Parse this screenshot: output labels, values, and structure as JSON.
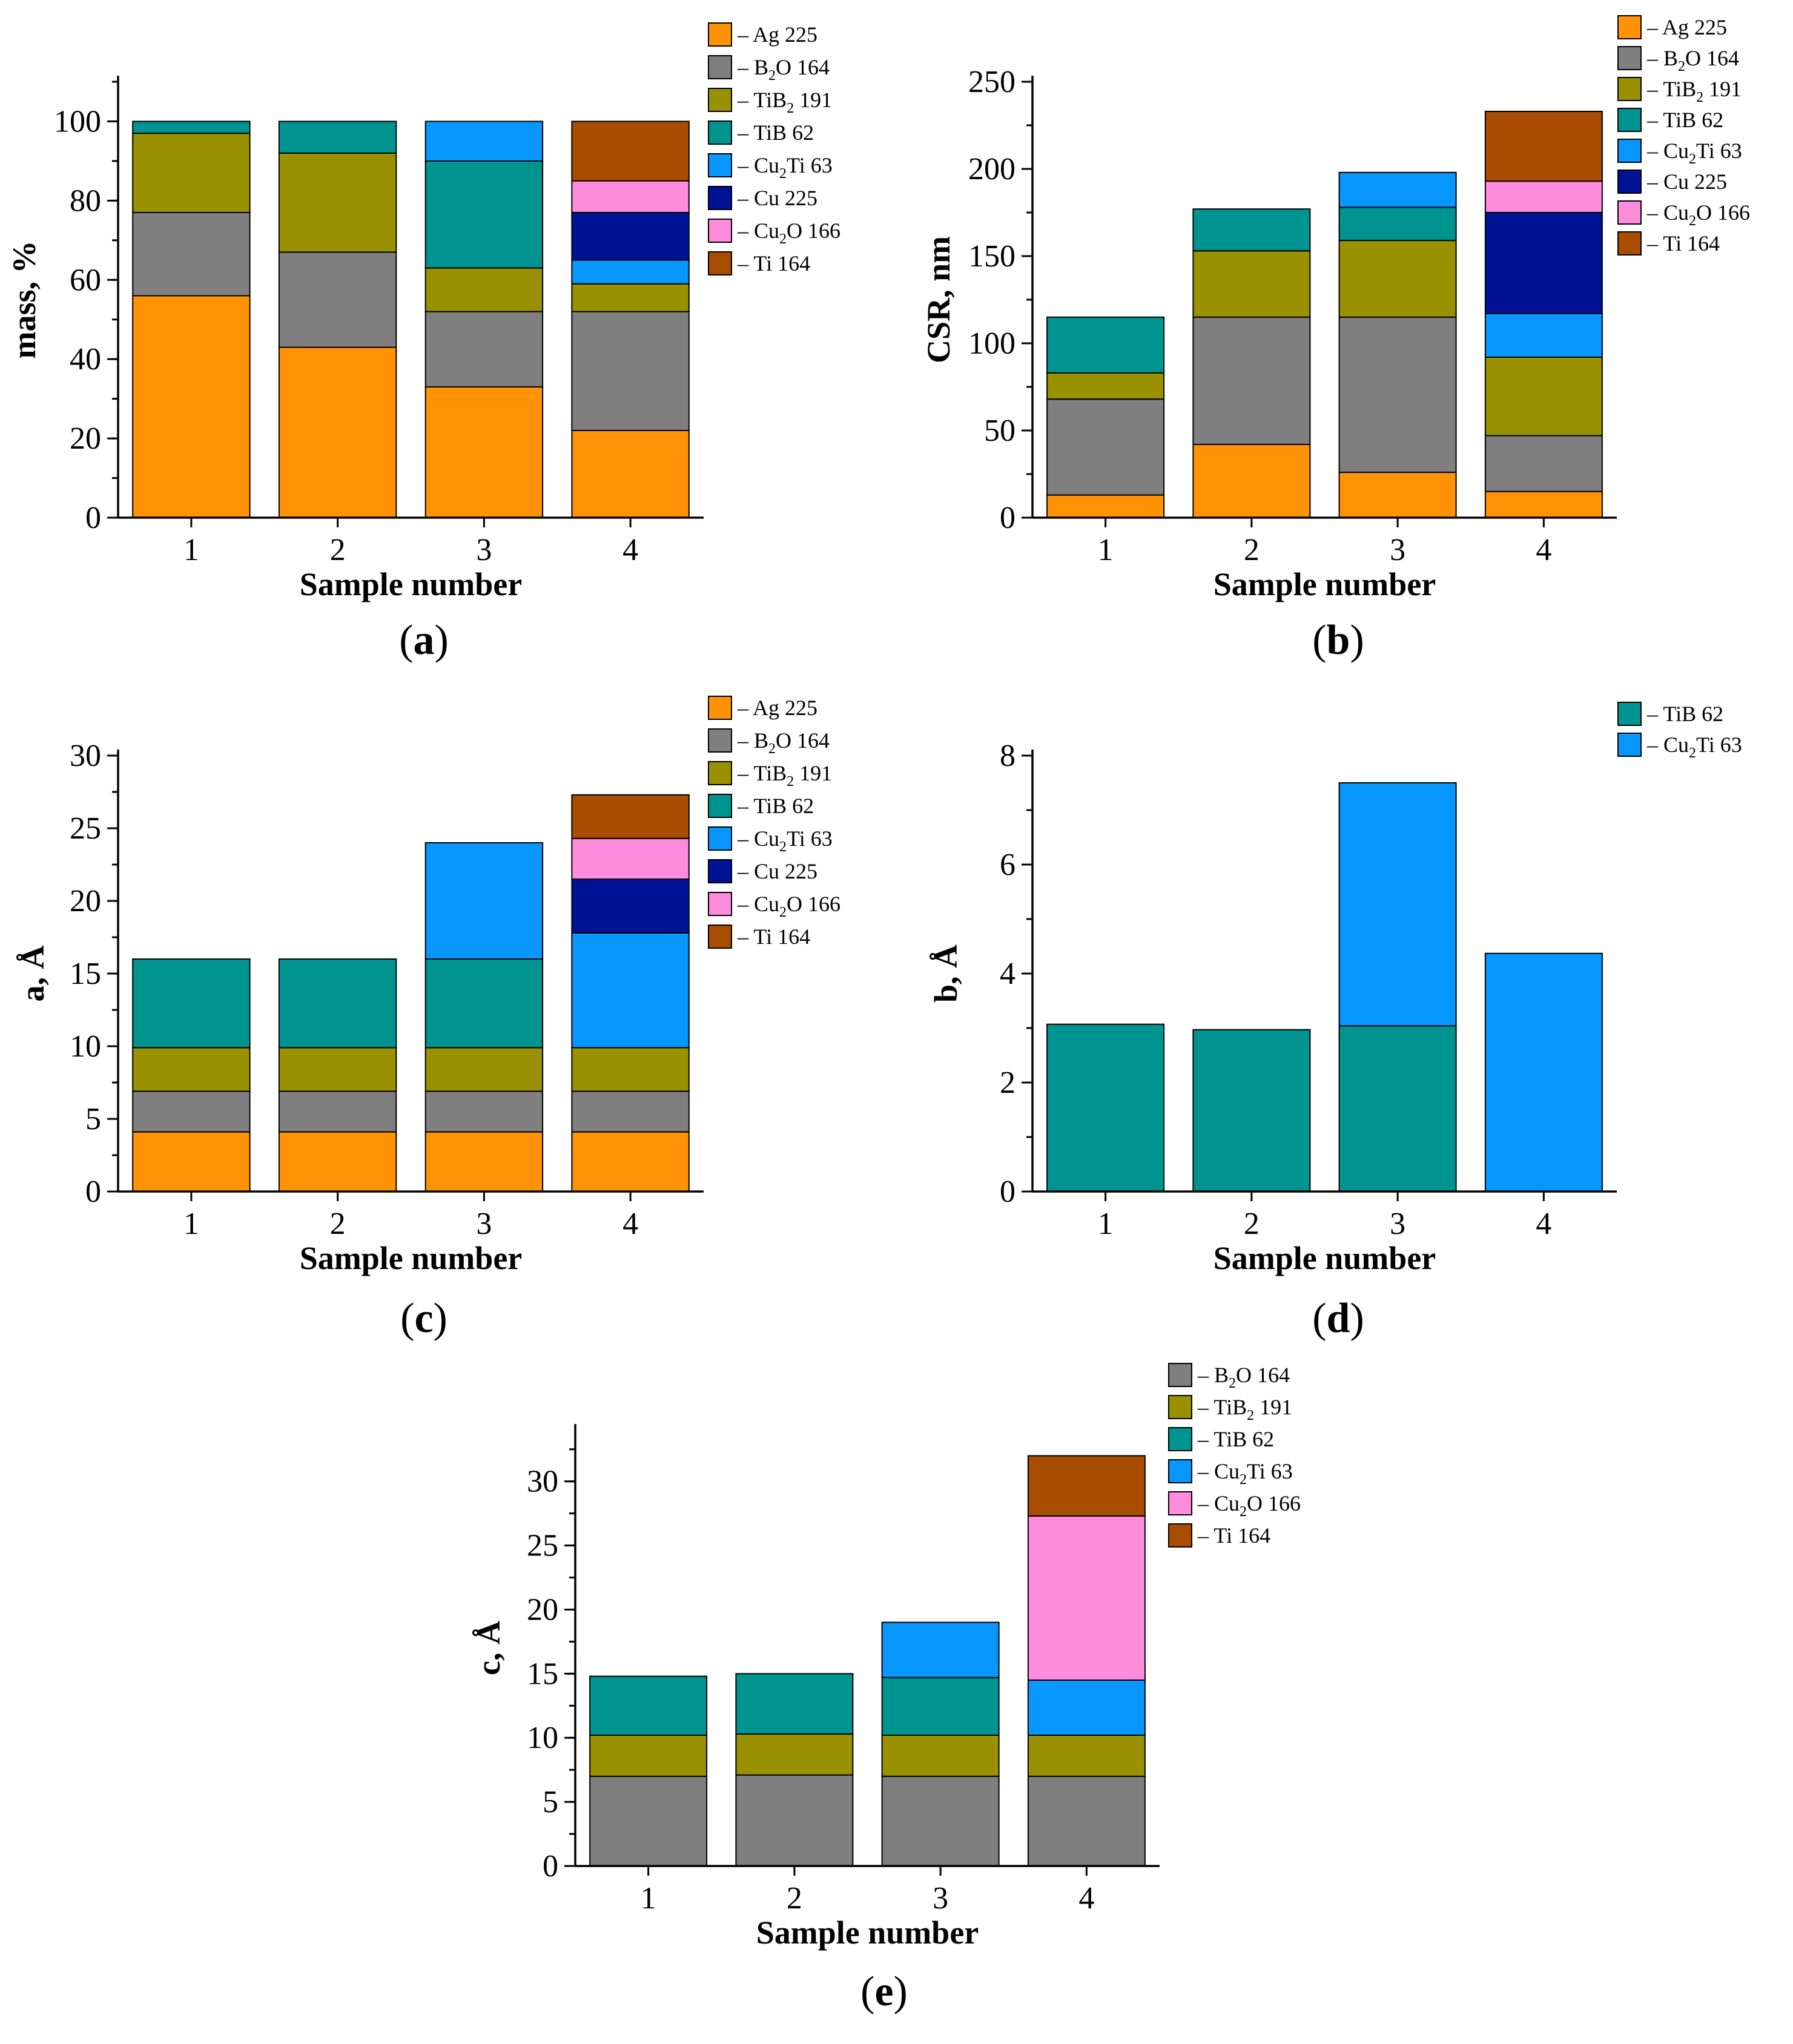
{
  "figure": {
    "colors": {
      "Ag 225": "#ff9305",
      "B2O 164": "#7f7f7f",
      "TiB2 191": "#999100",
      "TiB 62": "#009490",
      "Cu2Ti 63": "#0797ff",
      "Cu 225": "#001296",
      "Cu2O 166": "#ff8bdd",
      "Ti 164": "#a84d00"
    }
  },
  "chart_data": [
    {
      "id": "a",
      "type": "bar",
      "stacked": true,
      "caption_letter": "a",
      "xlabel": "Sample number",
      "ylabel": "mass, %",
      "categories": [
        "1",
        "2",
        "3",
        "4"
      ],
      "ylim": [
        0,
        110
      ],
      "yticks": [
        0,
        20,
        40,
        60,
        80,
        100
      ],
      "minor_step": 10,
      "legend_position": "top-right",
      "series": [
        {
          "name": "Ag 225",
          "label": [
            "– Ag 225"
          ],
          "values": [
            56,
            43,
            33,
            22
          ]
        },
        {
          "name": "B2O 164",
          "label": [
            "– B",
            "2",
            "O 164"
          ],
          "values": [
            21,
            24,
            19,
            30
          ]
        },
        {
          "name": "TiB2 191",
          "label": [
            "– TiB",
            "2",
            " 191"
          ],
          "values": [
            20,
            25,
            11,
            7
          ]
        },
        {
          "name": "TiB 62",
          "label": [
            "– TiB 62"
          ],
          "values": [
            3,
            8,
            27,
            0
          ]
        },
        {
          "name": "Cu2Ti 63",
          "label": [
            "– Cu",
            "2",
            "Ti 63"
          ],
          "values": [
            0,
            0,
            10,
            6
          ]
        },
        {
          "name": "Cu 225",
          "label": [
            "– Cu 225"
          ],
          "values": [
            0,
            0,
            0,
            12
          ]
        },
        {
          "name": "Cu2O 166",
          "label": [
            "– Cu",
            "2",
            "O 166"
          ],
          "values": [
            0,
            0,
            0,
            8
          ]
        },
        {
          "name": "Ti 164",
          "label": [
            "– Ti 164"
          ],
          "values": [
            0,
            0,
            0,
            15
          ]
        }
      ]
    },
    {
      "id": "b",
      "type": "bar",
      "stacked": true,
      "caption_letter": "b",
      "xlabel": "Sample number",
      "ylabel": "CSR, nm",
      "categories": [
        "1",
        "2",
        "3",
        "4"
      ],
      "ylim": [
        0,
        250
      ],
      "yticks": [
        0,
        50,
        100,
        150,
        200,
        250
      ],
      "minor_step": 25,
      "legend_position": "top-right",
      "series": [
        {
          "name": "Ag 225",
          "label": [
            "– Ag 225"
          ],
          "values": [
            13,
            42,
            26,
            15
          ]
        },
        {
          "name": "B2O 164",
          "label": [
            "– B",
            "2",
            "O 164"
          ],
          "values": [
            55,
            73,
            89,
            32
          ]
        },
        {
          "name": "TiB2 191",
          "label": [
            "– TiB",
            "2",
            " 191"
          ],
          "values": [
            15,
            38,
            44,
            45
          ]
        },
        {
          "name": "TiB 62",
          "label": [
            "– TiB 62"
          ],
          "values": [
            32,
            24,
            19,
            0
          ]
        },
        {
          "name": "Cu2Ti 63",
          "label": [
            "– Cu",
            "2",
            "Ti 63"
          ],
          "values": [
            0,
            0,
            20,
            25
          ]
        },
        {
          "name": "Cu 225",
          "label": [
            "– Cu 225"
          ],
          "values": [
            0,
            0,
            0,
            58
          ]
        },
        {
          "name": "Cu2O 166",
          "label": [
            "– Cu",
            "2",
            "O 166"
          ],
          "values": [
            0,
            0,
            0,
            18
          ]
        },
        {
          "name": "Ti 164",
          "label": [
            "– Ti 164"
          ],
          "values": [
            0,
            0,
            0,
            40
          ]
        }
      ]
    },
    {
      "id": "c",
      "type": "bar",
      "stacked": true,
      "caption_letter": "c",
      "xlabel": "Sample number",
      "ylabel": "a, Å",
      "categories": [
        "1",
        "2",
        "3",
        "4"
      ],
      "ylim": [
        0,
        30
      ],
      "yticks": [
        0,
        5,
        10,
        15,
        20,
        25,
        30
      ],
      "minor_step": 2.5,
      "legend_position": "top-right",
      "series": [
        {
          "name": "Ag 225",
          "label": [
            "– Ag 225"
          ],
          "values": [
            4.1,
            4.1,
            4.1,
            4.1
          ]
        },
        {
          "name": "B2O 164",
          "label": [
            "– B",
            "2",
            "O 164"
          ],
          "values": [
            2.8,
            2.8,
            2.8,
            2.8
          ]
        },
        {
          "name": "TiB2 191",
          "label": [
            "– TiB",
            "2",
            " 191"
          ],
          "values": [
            3.0,
            3.0,
            3.0,
            3.0
          ]
        },
        {
          "name": "TiB 62",
          "label": [
            "– TiB 62"
          ],
          "values": [
            6.1,
            6.1,
            6.1,
            0
          ]
        },
        {
          "name": "Cu2Ti 63",
          "label": [
            "– Cu",
            "2",
            "Ti 63"
          ],
          "values": [
            0,
            0,
            8.0,
            7.9
          ]
        },
        {
          "name": "Cu 225",
          "label": [
            "– Cu 225"
          ],
          "values": [
            0,
            0,
            0,
            3.7
          ]
        },
        {
          "name": "Cu2O 166",
          "label": [
            "– Cu",
            "2",
            "O 166"
          ],
          "values": [
            0,
            0,
            0,
            2.8
          ]
        },
        {
          "name": "Ti 164",
          "label": [
            "– Ti 164"
          ],
          "values": [
            0,
            0,
            0,
            3.0
          ]
        }
      ]
    },
    {
      "id": "d",
      "type": "bar",
      "stacked": true,
      "caption_letter": "d",
      "xlabel": "Sample number",
      "ylabel": "b, Å",
      "categories": [
        "1",
        "2",
        "3",
        "4"
      ],
      "ylim": [
        0,
        8
      ],
      "yticks": [
        0,
        2,
        4,
        6,
        8
      ],
      "minor_step": 1,
      "legend_position": "top-right",
      "series": [
        {
          "name": "TiB 62",
          "label": [
            "– TiB 62"
          ],
          "values": [
            3.07,
            2.97,
            3.04,
            0
          ]
        },
        {
          "name": "Cu2Ti 63",
          "label": [
            "– Cu",
            "2",
            "Ti 63"
          ],
          "values": [
            0,
            0,
            4.46,
            4.37
          ]
        }
      ]
    },
    {
      "id": "e",
      "type": "bar",
      "stacked": true,
      "caption_letter": "e",
      "xlabel": "Sample number",
      "ylabel": "c, Å",
      "categories": [
        "1",
        "2",
        "3",
        "4"
      ],
      "ylim": [
        0,
        34
      ],
      "yticks": [
        0,
        5,
        10,
        15,
        20,
        25,
        30
      ],
      "minor_step": 2.5,
      "legend_position": "top-right",
      "series": [
        {
          "name": "B2O 164",
          "label": [
            "– B",
            "2",
            "O 164"
          ],
          "values": [
            7.0,
            7.1,
            7.0,
            7.0
          ]
        },
        {
          "name": "TiB2 191",
          "label": [
            "– TiB",
            "2",
            " 191"
          ],
          "values": [
            3.2,
            3.2,
            3.2,
            3.2
          ]
        },
        {
          "name": "TiB 62",
          "label": [
            "– TiB 62"
          ],
          "values": [
            4.6,
            4.7,
            4.5,
            0
          ]
        },
        {
          "name": "Cu2Ti 63",
          "label": [
            "– Cu",
            "2",
            "Ti 63"
          ],
          "values": [
            0,
            0,
            4.3,
            4.3
          ]
        },
        {
          "name": "Cu2O 166",
          "label": [
            "– Cu",
            "2",
            "O 166"
          ],
          "values": [
            0,
            0,
            0,
            12.8
          ]
        },
        {
          "name": "Ti 164",
          "label": [
            "– Ti 164"
          ],
          "values": [
            0,
            0,
            0,
            4.7
          ]
        }
      ]
    }
  ]
}
